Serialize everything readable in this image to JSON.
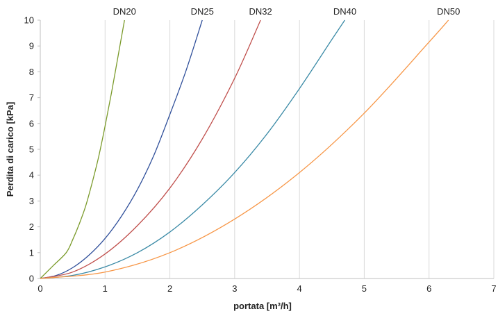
{
  "chart_data": {
    "type": "line",
    "xlabel": "portata [m³/h]",
    "ylabel": "Perdita di carico [kPa]",
    "xlim": [
      0,
      7
    ],
    "ylim": [
      0,
      10
    ],
    "x_ticks": [
      0,
      1,
      2,
      3,
      4,
      5,
      6,
      7
    ],
    "y_ticks": [
      0,
      1,
      2,
      3,
      4,
      5,
      6,
      7,
      8,
      9,
      10
    ],
    "grid": "vertical",
    "series": [
      {
        "name": "DN20",
        "color": "#7a9a2a",
        "x": [
          0,
          0.2,
          0.4,
          0.5,
          0.6,
          0.7,
          0.8,
          0.9,
          1.0,
          1.1,
          1.2,
          1.3
        ],
        "y": [
          0,
          0.5,
          1.0,
          1.5,
          2.1,
          2.8,
          3.7,
          4.7,
          5.9,
          7.2,
          8.6,
          10.0
        ]
      },
      {
        "name": "DN25",
        "color": "#2f4f9a",
        "x": [
          0,
          0.25,
          0.5,
          0.75,
          1.0,
          1.25,
          1.5,
          1.75,
          2.0,
          2.25,
          2.5
        ],
        "y": [
          0,
          0.12,
          0.42,
          0.9,
          1.55,
          2.4,
          3.45,
          4.75,
          6.35,
          8.05,
          10.0
        ]
      },
      {
        "name": "DN32",
        "color": "#c0504d",
        "x": [
          0,
          0.5,
          1.0,
          1.5,
          2.0,
          2.5,
          3.0,
          3.4
        ],
        "y": [
          0,
          0.25,
          0.95,
          2.05,
          3.5,
          5.4,
          7.75,
          10.0
        ]
      },
      {
        "name": "DN40",
        "color": "#3a8aa6",
        "x": [
          0,
          0.5,
          1.0,
          1.5,
          2.0,
          2.5,
          3.0,
          3.5,
          4.0,
          4.5,
          4.7
        ],
        "y": [
          0,
          0.12,
          0.45,
          1.0,
          1.8,
          2.85,
          4.1,
          5.6,
          7.35,
          9.25,
          10.0
        ]
      },
      {
        "name": "DN50",
        "color": "#f79646",
        "x": [
          0,
          1.0,
          2.0,
          3.0,
          4.0,
          5.0,
          6.0,
          6.3
        ],
        "y": [
          0,
          0.25,
          1.0,
          2.3,
          4.1,
          6.4,
          9.15,
          10.0
        ]
      }
    ]
  }
}
